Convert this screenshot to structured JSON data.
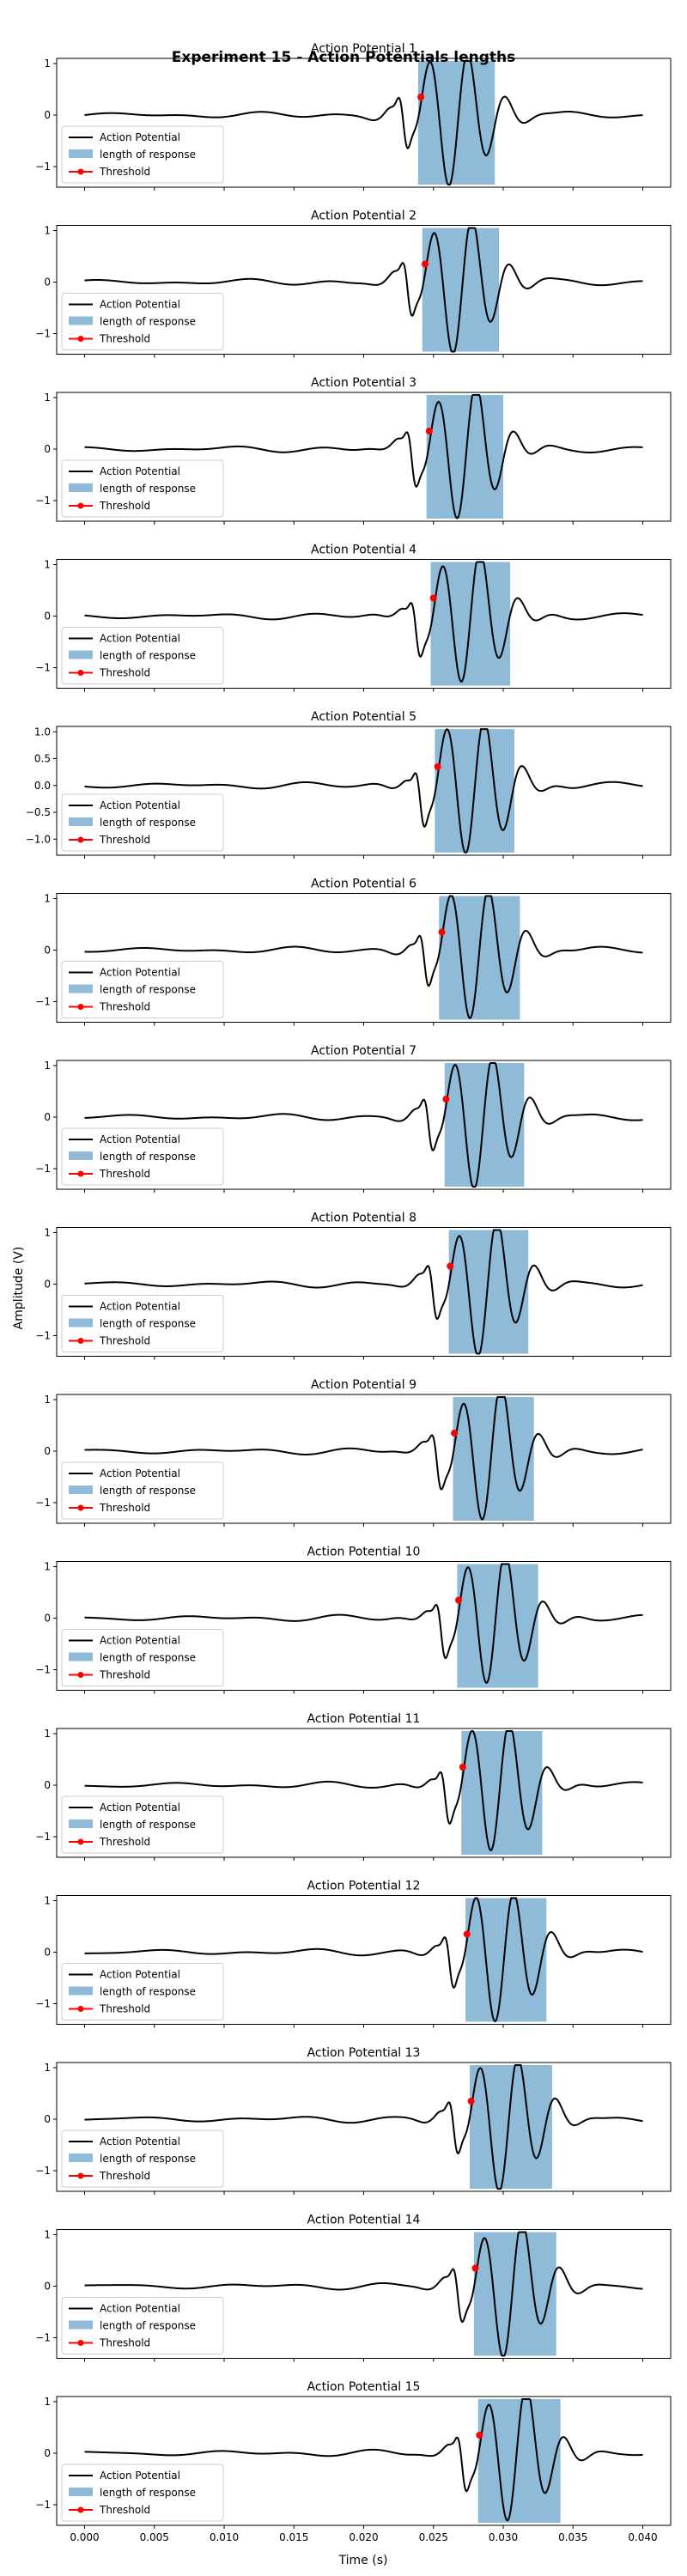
{
  "figure": {
    "suptitle": "Experiment 15 - Action Potentials lengths",
    "xlabel": "Time (s)",
    "ylabel": "Amplitude (V)"
  },
  "legend_labels": [
    "Action Potential",
    "length of response",
    "Threshold"
  ],
  "colors": {
    "trace": "#000000",
    "span": "#1f77b4",
    "span_opacity": 0.5,
    "threshold": "#ff0000"
  },
  "x_ticks": [
    "0.000",
    "0.005",
    "0.010",
    "0.015",
    "0.020",
    "0.025",
    "0.030",
    "0.035",
    "0.040"
  ],
  "chart_data": [
    {
      "type": "line",
      "title": "Action Potential 1",
      "xlim": [
        -0.002,
        0.042
      ],
      "ylim": [
        -1.4,
        1.1
      ],
      "yticks": [
        -1,
        0,
        1
      ],
      "ytick_labels": [
        "−1",
        "0",
        "1"
      ],
      "series": [
        {
          "name": "Action Potential"
        }
      ],
      "peak_time": 0.0247,
      "threshold": {
        "x": 0.0241,
        "y": 0.35
      },
      "response_span": [
        0.0239,
        0.0294
      ],
      "legend": "lower-left"
    },
    {
      "type": "line",
      "title": "Action Potential 2",
      "xlim": [
        -0.002,
        0.042
      ],
      "ylim": [
        -1.4,
        1.1
      ],
      "yticks": [
        -1,
        0,
        1
      ],
      "ytick_labels": [
        "−1",
        "0",
        "1"
      ],
      "series": [
        {
          "name": "Action Potential"
        }
      ],
      "peak_time": 0.025,
      "threshold": {
        "x": 0.0244,
        "y": 0.35
      },
      "response_span": [
        0.0242,
        0.0297
      ],
      "legend": "lower-left"
    },
    {
      "type": "line",
      "title": "Action Potential 3",
      "xlim": [
        -0.002,
        0.042
      ],
      "ylim": [
        -1.4,
        1.1
      ],
      "yticks": [
        -1,
        0,
        1
      ],
      "ytick_labels": [
        "−1",
        "0",
        "1"
      ],
      "series": [
        {
          "name": "Action Potential"
        }
      ],
      "peak_time": 0.0253,
      "threshold": {
        "x": 0.0247,
        "y": 0.35
      },
      "response_span": [
        0.0245,
        0.03
      ],
      "legend": "lower-left"
    },
    {
      "type": "line",
      "title": "Action Potential 4",
      "xlim": [
        -0.002,
        0.042
      ],
      "ylim": [
        -1.4,
        1.1
      ],
      "yticks": [
        -1,
        0,
        1
      ],
      "ytick_labels": [
        "−1",
        "0",
        "1"
      ],
      "series": [
        {
          "name": "Action Potential"
        }
      ],
      "peak_time": 0.0256,
      "threshold": {
        "x": 0.025,
        "y": 0.35
      },
      "response_span": [
        0.0248,
        0.0305
      ],
      "legend": "lower-left"
    },
    {
      "type": "line",
      "title": "Action Potential 5",
      "xlim": [
        -0.002,
        0.042
      ],
      "ylim": [
        -1.3,
        1.1
      ],
      "yticks": [
        -1.0,
        -0.5,
        0.0,
        0.5,
        1.0
      ],
      "ytick_labels": [
        "−1.0",
        "−0.5",
        "0.0",
        "0.5",
        "1.0"
      ],
      "series": [
        {
          "name": "Action Potential"
        }
      ],
      "peak_time": 0.0259,
      "threshold": {
        "x": 0.0253,
        "y": 0.35
      },
      "response_span": [
        0.0251,
        0.0308
      ],
      "legend": "lower-left"
    },
    {
      "type": "line",
      "title": "Action Potential 6",
      "xlim": [
        -0.002,
        0.042
      ],
      "ylim": [
        -1.4,
        1.1
      ],
      "yticks": [
        -1,
        0,
        1
      ],
      "ytick_labels": [
        "−1",
        "0",
        "1"
      ],
      "series": [
        {
          "name": "Action Potential"
        }
      ],
      "peak_time": 0.0262,
      "threshold": {
        "x": 0.0256,
        "y": 0.35
      },
      "response_span": [
        0.0254,
        0.0312
      ],
      "legend": "lower-left"
    },
    {
      "type": "line",
      "title": "Action Potential 7",
      "xlim": [
        -0.002,
        0.042
      ],
      "ylim": [
        -1.4,
        1.1
      ],
      "yticks": [
        -1,
        0,
        1
      ],
      "ytick_labels": [
        "−1",
        "0",
        "1"
      ],
      "series": [
        {
          "name": "Action Potential"
        }
      ],
      "peak_time": 0.0265,
      "threshold": {
        "x": 0.0259,
        "y": 0.35
      },
      "response_span": [
        0.0258,
        0.0315
      ],
      "legend": "lower-left"
    },
    {
      "type": "line",
      "title": "Action Potential 8",
      "xlim": [
        -0.002,
        0.042
      ],
      "ylim": [
        -1.4,
        1.1
      ],
      "yticks": [
        -1,
        0,
        1
      ],
      "ytick_labels": [
        "−1",
        "0",
        "1"
      ],
      "series": [
        {
          "name": "Action Potential"
        }
      ],
      "peak_time": 0.0268,
      "threshold": {
        "x": 0.0262,
        "y": 0.35
      },
      "response_span": [
        0.0261,
        0.0318
      ],
      "legend": "lower-left"
    },
    {
      "type": "line",
      "title": "Action Potential 9",
      "xlim": [
        -0.002,
        0.042
      ],
      "ylim": [
        -1.4,
        1.1
      ],
      "yticks": [
        -1,
        0,
        1
      ],
      "ytick_labels": [
        "−1",
        "0",
        "1"
      ],
      "series": [
        {
          "name": "Action Potential"
        }
      ],
      "peak_time": 0.0271,
      "threshold": {
        "x": 0.0265,
        "y": 0.35
      },
      "response_span": [
        0.0264,
        0.0322
      ],
      "legend": "lower-left"
    },
    {
      "type": "line",
      "title": "Action Potential 10",
      "xlim": [
        -0.002,
        0.042
      ],
      "ylim": [
        -1.4,
        1.1
      ],
      "yticks": [
        -1,
        0,
        1
      ],
      "ytick_labels": [
        "−1",
        "0",
        "1"
      ],
      "series": [
        {
          "name": "Action Potential"
        }
      ],
      "peak_time": 0.0274,
      "threshold": {
        "x": 0.0268,
        "y": 0.35
      },
      "response_span": [
        0.0267,
        0.0325
      ],
      "legend": "lower-left"
    },
    {
      "type": "line",
      "title": "Action Potential 11",
      "xlim": [
        -0.002,
        0.042
      ],
      "ylim": [
        -1.4,
        1.1
      ],
      "yticks": [
        -1,
        0,
        1
      ],
      "ytick_labels": [
        "−1",
        "0",
        "1"
      ],
      "series": [
        {
          "name": "Action Potential"
        }
      ],
      "peak_time": 0.0277,
      "threshold": {
        "x": 0.0271,
        "y": 0.35
      },
      "response_span": [
        0.027,
        0.0328
      ],
      "legend": "lower-left"
    },
    {
      "type": "line",
      "title": "Action Potential 12",
      "xlim": [
        -0.002,
        0.042
      ],
      "ylim": [
        -1.4,
        1.1
      ],
      "yticks": [
        -1,
        0,
        1
      ],
      "ytick_labels": [
        "−1",
        "0",
        "1"
      ],
      "series": [
        {
          "name": "Action Potential"
        }
      ],
      "peak_time": 0.028,
      "threshold": {
        "x": 0.0274,
        "y": 0.35
      },
      "response_span": [
        0.0273,
        0.0331
      ],
      "legend": "lower-left"
    },
    {
      "type": "line",
      "title": "Action Potential 13",
      "xlim": [
        -0.002,
        0.042
      ],
      "ylim": [
        -1.4,
        1.1
      ],
      "yticks": [
        -1,
        0,
        1
      ],
      "ytick_labels": [
        "−1",
        "0",
        "1"
      ],
      "series": [
        {
          "name": "Action Potential"
        }
      ],
      "peak_time": 0.0283,
      "threshold": {
        "x": 0.0277,
        "y": 0.35
      },
      "response_span": [
        0.0276,
        0.0335
      ],
      "legend": "lower-left"
    },
    {
      "type": "line",
      "title": "Action Potential 14",
      "xlim": [
        -0.002,
        0.042
      ],
      "ylim": [
        -1.4,
        1.1
      ],
      "yticks": [
        -1,
        0,
        1
      ],
      "ytick_labels": [
        "−1",
        "0",
        "1"
      ],
      "series": [
        {
          "name": "Action Potential"
        }
      ],
      "peak_time": 0.0286,
      "threshold": {
        "x": 0.028,
        "y": 0.35
      },
      "response_span": [
        0.0279,
        0.0338
      ],
      "legend": "lower-left"
    },
    {
      "type": "line",
      "title": "Action Potential 15",
      "xlim": [
        -0.002,
        0.042
      ],
      "ylim": [
        -1.4,
        1.1
      ],
      "yticks": [
        -1,
        0,
        1
      ],
      "ytick_labels": [
        "−1",
        "0",
        "1"
      ],
      "series": [
        {
          "name": "Action Potential"
        }
      ],
      "peak_time": 0.0289,
      "threshold": {
        "x": 0.0283,
        "y": 0.35
      },
      "response_span": [
        0.0282,
        0.0341
      ],
      "legend": "lower-left"
    }
  ]
}
